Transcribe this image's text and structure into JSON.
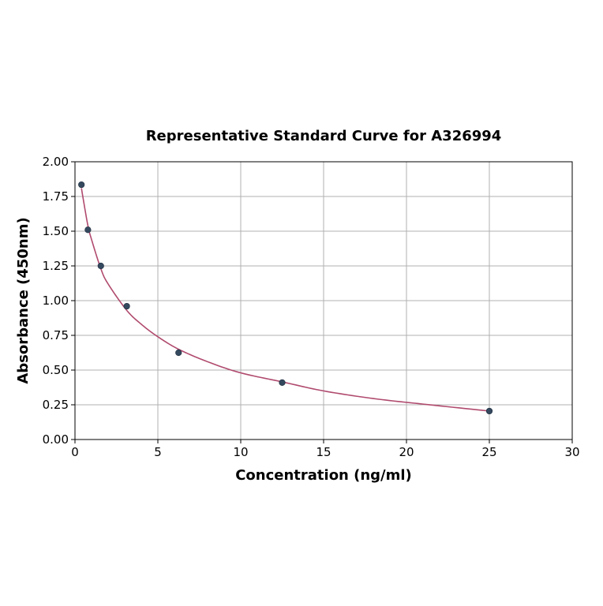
{
  "chart_data": {
    "type": "scatter",
    "title": "Representative Standard Curve for A326994",
    "xlabel": "Concentration (ng/ml)",
    "ylabel": "Absorbance (450nm)",
    "xlim": [
      0,
      30
    ],
    "ylim": [
      0,
      2.0
    ],
    "xticks": [
      "0",
      "5",
      "10",
      "15",
      "20",
      "25",
      "30"
    ],
    "yticks": [
      "0.00",
      "0.25",
      "0.50",
      "0.75",
      "1.00",
      "1.25",
      "1.50",
      "1.75",
      "2.00"
    ],
    "grid": true,
    "series": [
      {
        "kind": "points",
        "x": [
          0.39,
          0.78,
          1.56,
          3.125,
          6.25,
          12.5,
          25
        ],
        "y": [
          1.835,
          1.51,
          1.25,
          0.96,
          0.625,
          0.41,
          0.205
        ]
      },
      {
        "kind": "fitted-curve",
        "x": [
          0.39,
          0.5,
          0.78,
          1.0,
          1.56,
          2.0,
          3.125,
          4.0,
          5.0,
          6.25,
          8.0,
          10.0,
          12.5,
          15.0,
          18.0,
          21.0,
          25.0
        ],
        "y": [
          1.81,
          1.73,
          1.54,
          1.44,
          1.23,
          1.12,
          0.93,
          0.83,
          0.74,
          0.65,
          0.56,
          0.48,
          0.415,
          0.35,
          0.295,
          0.255,
          0.205
        ]
      }
    ],
    "colors": {
      "point_fill": "#34495e",
      "curve": "#b04a6e",
      "grid": "#b0b0b0",
      "axis": "#000000"
    }
  }
}
